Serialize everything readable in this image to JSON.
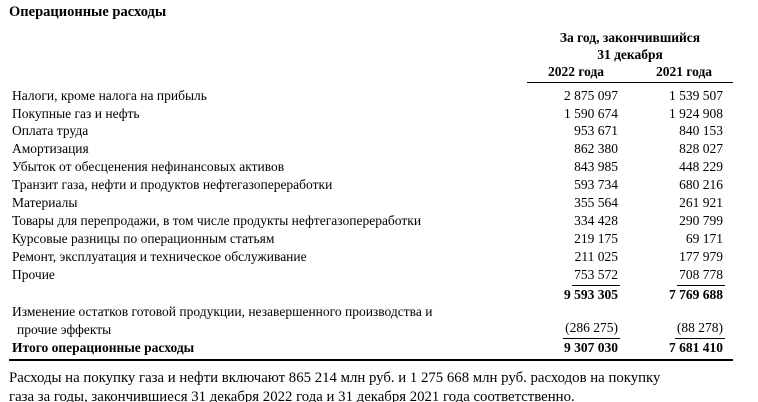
{
  "title": "Операционные расходы",
  "colors": {
    "text": "#000000",
    "background": "#ffffff"
  },
  "table": {
    "period_header_line1": "За год, закончившийся",
    "period_header_line2": "31 декабря",
    "columns": [
      "2022 года",
      "2021 года"
    ],
    "rows": [
      {
        "label": "Налоги, кроме налога на прибыль",
        "y2022": "2 875 097",
        "y2021": "1 539 507"
      },
      {
        "label": "Покупные газ и нефть",
        "y2022": "1 590 674",
        "y2021": "1 924 908"
      },
      {
        "label": "Оплата труда",
        "y2022": "953 671",
        "y2021": "840 153"
      },
      {
        "label": "Амортизация",
        "y2022": "862 380",
        "y2021": "828 027"
      },
      {
        "label": "Убыток от обесценения нефинансовых активов",
        "y2022": "843 985",
        "y2021": "448 229"
      },
      {
        "label": "Транзит газа, нефти и продуктов нефтегазопереработки",
        "y2022": "593 734",
        "y2021": "680 216"
      },
      {
        "label": "Материалы",
        "y2022": "355 564",
        "y2021": "261 921"
      },
      {
        "label": "Товары для перепродажи, в том числе продукты нефтегазопереработки",
        "y2022": "334 428",
        "y2021": "290 799"
      },
      {
        "label": "Курсовые разницы по операционным статьям",
        "y2022": "219 175",
        "y2021": "69 171"
      },
      {
        "label": "Ремонт, эксплуатация и техническое обслуживание",
        "y2022": "211 025",
        "y2021": "177 979"
      },
      {
        "label": "Прочие",
        "y2022": "753 572",
        "y2021": "708 778"
      }
    ],
    "subtotal": {
      "y2022": "9 593 305",
      "y2021": "7 769 688"
    },
    "adjustment": {
      "label_line1": "Изменение остатков готовой продукции, незавершенного производства и",
      "label_line2": "прочие эффекты",
      "y2022": "(286 275)",
      "y2021": "(88 278)"
    },
    "total": {
      "label": "Итого операционные расходы",
      "y2022": "9 307 030",
      "y2021": "7 681 410"
    }
  },
  "footnote": {
    "line1": "Расходы на покупку газа и нефти включают 865 214 млн руб. и 1 275 668 млн руб. расходов на покупку",
    "line2": "газа за годы, закончившиеся 31 декабря 2022 года и 31 декабря 2021 года соответственно."
  }
}
